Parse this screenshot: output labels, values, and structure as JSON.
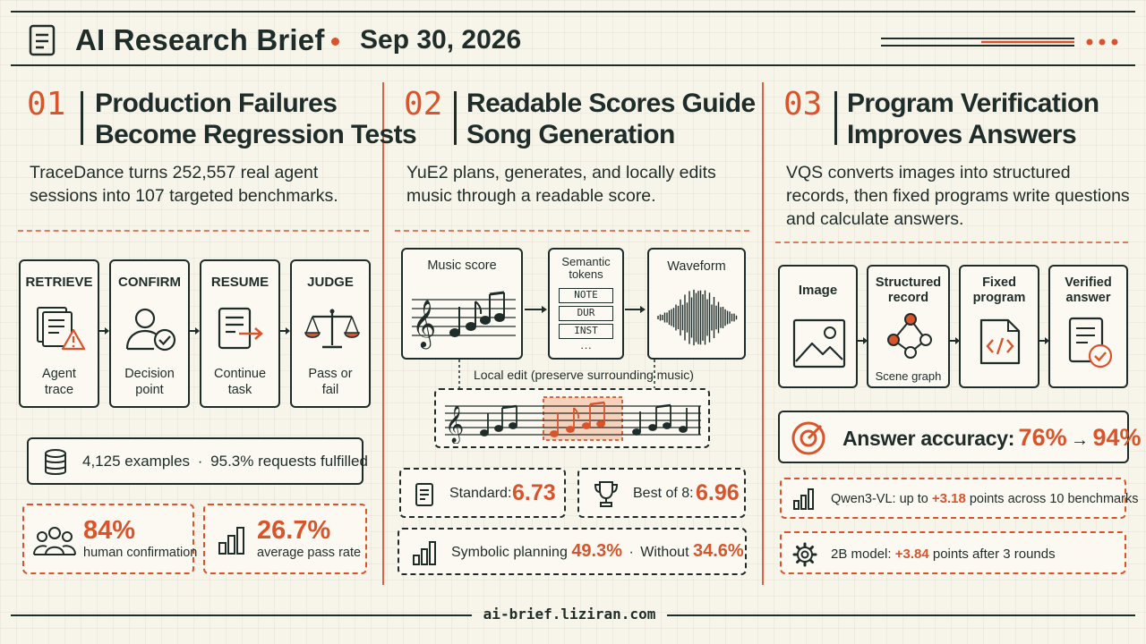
{
  "header": {
    "title": "AI Research Brief",
    "date": "Sep 30, 2026"
  },
  "footer": {
    "url": "ai-brief.liziran.com"
  },
  "colors": {
    "accent": "#d9542b",
    "ink": "#1f2d2a",
    "background": "#f7f4ea"
  },
  "sections": [
    {
      "number": "01",
      "title_line1": "Production Failures",
      "title_line2": "Become Regression Tests",
      "desc_line1": "TraceDance turns 252,557 real agent",
      "desc_line2": "sessions into 107 targeted benchmarks.",
      "steps": [
        {
          "heading": "RETRIEVE",
          "line1": "Agent",
          "line2": "trace",
          "icon": "trace-warning-icon"
        },
        {
          "heading": "CONFIRM",
          "line1": "Decision",
          "line2": "point",
          "icon": "person-check-icon"
        },
        {
          "heading": "RESUME",
          "line1": "Continue",
          "line2": "task",
          "icon": "document-arrow-icon"
        },
        {
          "heading": "JUDGE",
          "line1": "Pass or",
          "line2": "fail",
          "icon": "scales-icon"
        }
      ],
      "examples": "4,125 examples",
      "separator": "·",
      "fulfilled": "95.3% requests fulfilled",
      "stats": [
        {
          "value": "84%",
          "label": "human confirmation",
          "icon": "people-icon"
        },
        {
          "value": "26.7%",
          "label": "average pass rate",
          "icon": "bar-chart-icon"
        }
      ]
    },
    {
      "number": "02",
      "title_line1": "Readable Scores Guide",
      "title_line2": "Song Generation",
      "desc_line1": "YuE2 plans, generates, and locally edits",
      "desc_line2": "music through a readable score.",
      "pipeline": {
        "score_label": "Music score",
        "tokens_label_line1": "Semantic",
        "tokens_label_line2": "tokens",
        "tokens": [
          "NOTE",
          "DUR",
          "INST"
        ],
        "tokens_more": "···",
        "waveform_label": "Waveform"
      },
      "local_edit": "Local edit (preserve surrounding music)",
      "standard_label": "Standard:",
      "standard_value": "6.73",
      "best_label": "Best of 8:",
      "best_value": "6.96",
      "planning_label": "Symbolic planning",
      "planning_value": "49.3%",
      "separator": "·",
      "without_label": "Without",
      "without_value": "34.6%"
    },
    {
      "number": "03",
      "title_line1": "Program Verification",
      "title_line2": "Improves Answers",
      "desc_line1": "VQS converts images into structured",
      "desc_line2": "records, then fixed programs write questions",
      "desc_line3": "and calculate answers.",
      "steps": [
        {
          "line1": "Image",
          "line2": "",
          "icon": "image-icon"
        },
        {
          "line1": "Structured",
          "line2": "record",
          "caption": "Scene graph",
          "icon": "scene-graph-icon"
        },
        {
          "line1": "Fixed",
          "line2": "program",
          "icon": "code-icon"
        },
        {
          "line1": "Verified",
          "line2": "answer",
          "icon": "verified-doc-icon"
        }
      ],
      "accuracy_label": "Answer accuracy:",
      "accuracy_from": "76%",
      "accuracy_arrow": "→",
      "accuracy_to": "94%",
      "qwen_prefix": "Qwen3-VL: up to",
      "qwen_value": "+3.18",
      "qwen_suffix": "points across 10 benchmarks",
      "model_prefix": "2B model:",
      "model_value": "+3.84",
      "model_suffix": "points after 3 rounds"
    }
  ]
}
